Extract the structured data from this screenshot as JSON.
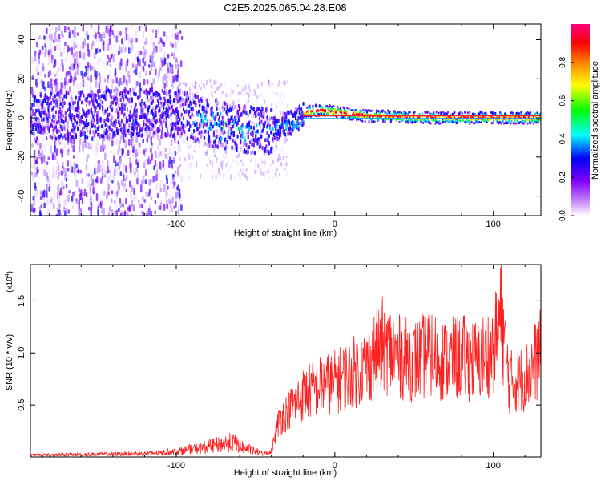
{
  "chart_data": [
    {
      "type": "heatmap",
      "title": "C2E5.2025.065.04.28.E08",
      "xlabel": "Height of straight line (km)",
      "ylabel": "Frequency (Hz)",
      "xlim": [
        -192,
        130
      ],
      "ylim": [
        -50,
        48
      ],
      "xticks": [
        -100,
        0,
        100
      ],
      "yticks": [
        -40,
        -20,
        0,
        20,
        40
      ],
      "colorbar": {
        "label": "Normalized spectral amplitude",
        "range": [
          0,
          1
        ],
        "ticks": [
          0.0,
          0.2,
          0.4,
          0.6,
          0.8
        ],
        "tick_labels": [
          "0.0",
          "0.2",
          "0.4",
          "0.6",
          "0.8"
        ],
        "colormap": [
          "#ffffff",
          "#8000ff",
          "#0000ff",
          "#00ffff",
          "#00ff00",
          "#ffff00",
          "#ff8000",
          "#ff0000",
          "#ff0080"
        ]
      },
      "ridge": {
        "description_points_x": [
          -190,
          -160,
          -130,
          -100,
          -80,
          -60,
          -45,
          -35,
          -25,
          -20,
          -10,
          0,
          20,
          60,
          100,
          130
        ],
        "description_points_y": [
          0,
          2,
          3,
          3,
          -2,
          -5,
          -7,
          -4,
          -1,
          3,
          4,
          3,
          1,
          0,
          0,
          0
        ]
      }
    },
    {
      "type": "line",
      "xlabel": "Height of straight line (km)",
      "ylabel": "SNR (10 * v/v)",
      "y_scale_label": "(x10",
      "y_scale_exp": "4",
      "y_scale_close": ")",
      "xlim": [
        -192,
        130
      ],
      "ylim": [
        0,
        1.85
      ],
      "xticks": [
        -100,
        0,
        100
      ],
      "yticks": [
        0.5,
        1.0,
        1.5
      ],
      "ytick_labels": [
        "0.5",
        "1.0",
        "1.5"
      ],
      "series": [
        {
          "name": "SNR",
          "color": "#ff2020",
          "envelope_x": [
            -192,
            -150,
            -120,
            -100,
            -80,
            -65,
            -55,
            -45,
            -40,
            -35,
            -30,
            -20,
            -10,
            0,
            10,
            20,
            30,
            40,
            50,
            60,
            70,
            80,
            90,
            100,
            105,
            110,
            120,
            130
          ],
          "envelope_y": [
            0.03,
            0.04,
            0.05,
            0.08,
            0.15,
            0.22,
            0.12,
            0.05,
            0.08,
            0.45,
            0.55,
            0.75,
            0.85,
            0.9,
            1.0,
            1.1,
            1.35,
            1.2,
            1.15,
            1.25,
            1.15,
            1.2,
            1.15,
            1.3,
            1.7,
            0.9,
            0.95,
            1.25
          ]
        }
      ]
    }
  ]
}
